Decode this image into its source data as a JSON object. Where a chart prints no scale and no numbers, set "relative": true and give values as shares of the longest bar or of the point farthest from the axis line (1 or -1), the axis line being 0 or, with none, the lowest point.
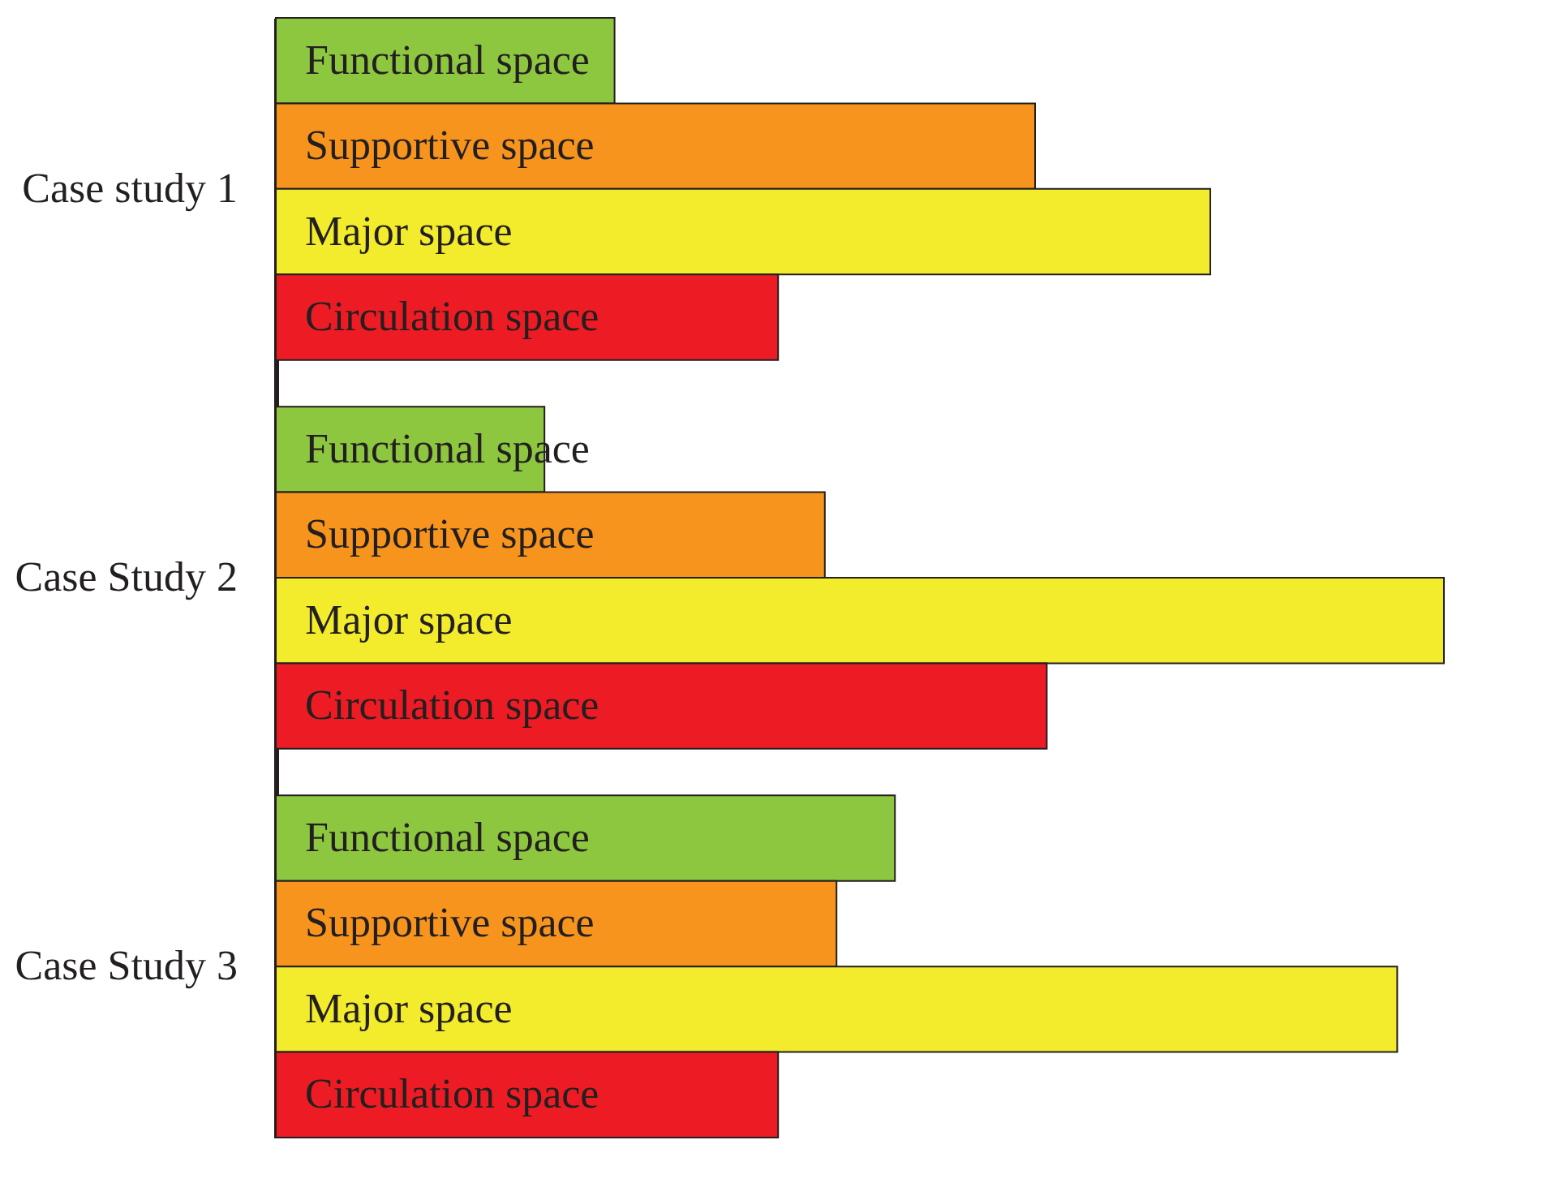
{
  "chart_data": {
    "type": "bar",
    "orientation": "horizontal",
    "relative": true,
    "categories": [
      "Case study 1",
      "Case Study 2",
      "Case Study 3"
    ],
    "series": [
      {
        "name": "Functional space",
        "color": "#8dc63f",
        "values": [
          0.29,
          0.23,
          0.53
        ]
      },
      {
        "name": "Supportive space",
        "color": "#f7941d",
        "values": [
          0.65,
          0.47,
          0.48
        ]
      },
      {
        "name": "Major space",
        "color": "#f2ec2c",
        "values": [
          0.8,
          1,
          0.96
        ]
      },
      {
        "name": "Circulation space",
        "color": "#ed1c24",
        "values": [
          0.43,
          0.66,
          0.43
        ]
      }
    ]
  }
}
